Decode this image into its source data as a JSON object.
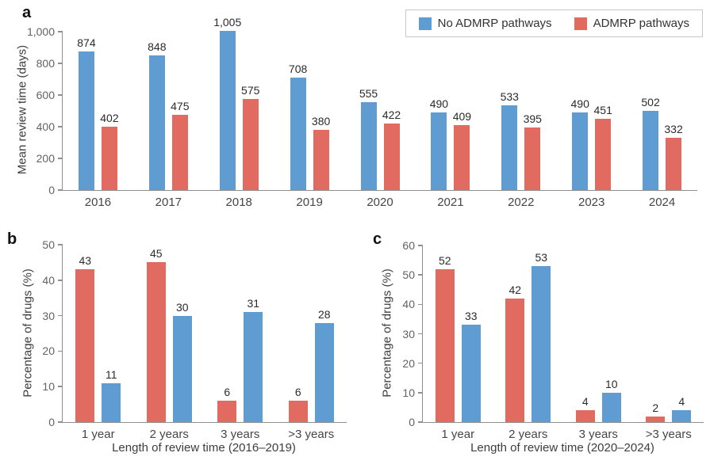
{
  "colors": {
    "no_admrp_blue": "#5F9CD1",
    "admrp_red": "#E16A61",
    "axis": "#8f8f8f",
    "tick_text": "#636363",
    "value_text": "#2b2b2b"
  },
  "legend": {
    "items": [
      {
        "label": "No ADMRP pathways",
        "color": "#5F9CD1"
      },
      {
        "label": "ADMRP pathways",
        "color": "#E16A61"
      }
    ],
    "position": "top-right"
  },
  "chart_data": [
    {
      "type": "bar",
      "panel_label": "a",
      "title": "",
      "ylabel": "Mean review time (days)",
      "xlabel": "",
      "ylim": [
        0,
        1000
      ],
      "ytick_values": [
        0,
        200,
        400,
        600,
        800,
        1000
      ],
      "ytick_labels": [
        "0",
        "200",
        "400",
        "600",
        "800",
        "1,000"
      ],
      "grid": false,
      "categories": [
        "2016",
        "2017",
        "2018",
        "2019",
        "2020",
        "2021",
        "2022",
        "2023",
        "2024"
      ],
      "series": [
        {
          "name": "No ADMRP pathways",
          "color": "#5F9CD1",
          "values": [
            874,
            848,
            1005,
            708,
            555,
            490,
            533,
            490,
            502
          ],
          "labels": [
            "874",
            "848",
            "1,005",
            "708",
            "555",
            "490",
            "533",
            "490",
            "502"
          ]
        },
        {
          "name": "ADMRP pathways",
          "color": "#E16A61",
          "values": [
            402,
            475,
            575,
            380,
            422,
            409,
            395,
            451,
            332
          ],
          "labels": [
            "402",
            "475",
            "575",
            "380",
            "422",
            "409",
            "395",
            "451",
            "332"
          ]
        }
      ]
    },
    {
      "type": "bar",
      "panel_label": "b",
      "title": "",
      "ylabel": "Percentage of drugs (%)",
      "xlabel": "Length of review time (2016–2019)",
      "ylim": [
        0,
        50
      ],
      "ytick_values": [
        0,
        10,
        20,
        30,
        40,
        50
      ],
      "ytick_labels": [
        "0",
        "10",
        "20",
        "30",
        "40",
        "50"
      ],
      "grid": false,
      "categories": [
        "1 year",
        "2 years",
        "3 years",
        ">3 years"
      ],
      "series": [
        {
          "name": "ADMRP pathways",
          "color": "#E16A61",
          "values": [
            43,
            45,
            6,
            6
          ],
          "labels": [
            "43",
            "45",
            "6",
            "6"
          ]
        },
        {
          "name": "No ADMRP pathways",
          "color": "#5F9CD1",
          "values": [
            11,
            30,
            31,
            28
          ],
          "labels": [
            "11",
            "30",
            "31",
            "28"
          ]
        }
      ]
    },
    {
      "type": "bar",
      "panel_label": "c",
      "title": "",
      "ylabel": "Percentage of drugs (%)",
      "xlabel": "Length of review time (2020–2024)",
      "ylim": [
        0,
        60
      ],
      "ytick_values": [
        0,
        10,
        20,
        30,
        40,
        50,
        60
      ],
      "ytick_labels": [
        "0",
        "10",
        "20",
        "30",
        "40",
        "50",
        "60"
      ],
      "grid": false,
      "categories": [
        "1 year",
        "2 years",
        "3 years",
        ">3 years"
      ],
      "series": [
        {
          "name": "ADMRP pathways",
          "color": "#E16A61",
          "values": [
            52,
            42,
            4,
            2
          ],
          "labels": [
            "52",
            "42",
            "4",
            "2"
          ]
        },
        {
          "name": "No ADMRP pathways",
          "color": "#5F9CD1",
          "values": [
            33,
            53,
            10,
            4
          ],
          "labels": [
            "33",
            "53",
            "10",
            "4"
          ]
        }
      ]
    }
  ]
}
